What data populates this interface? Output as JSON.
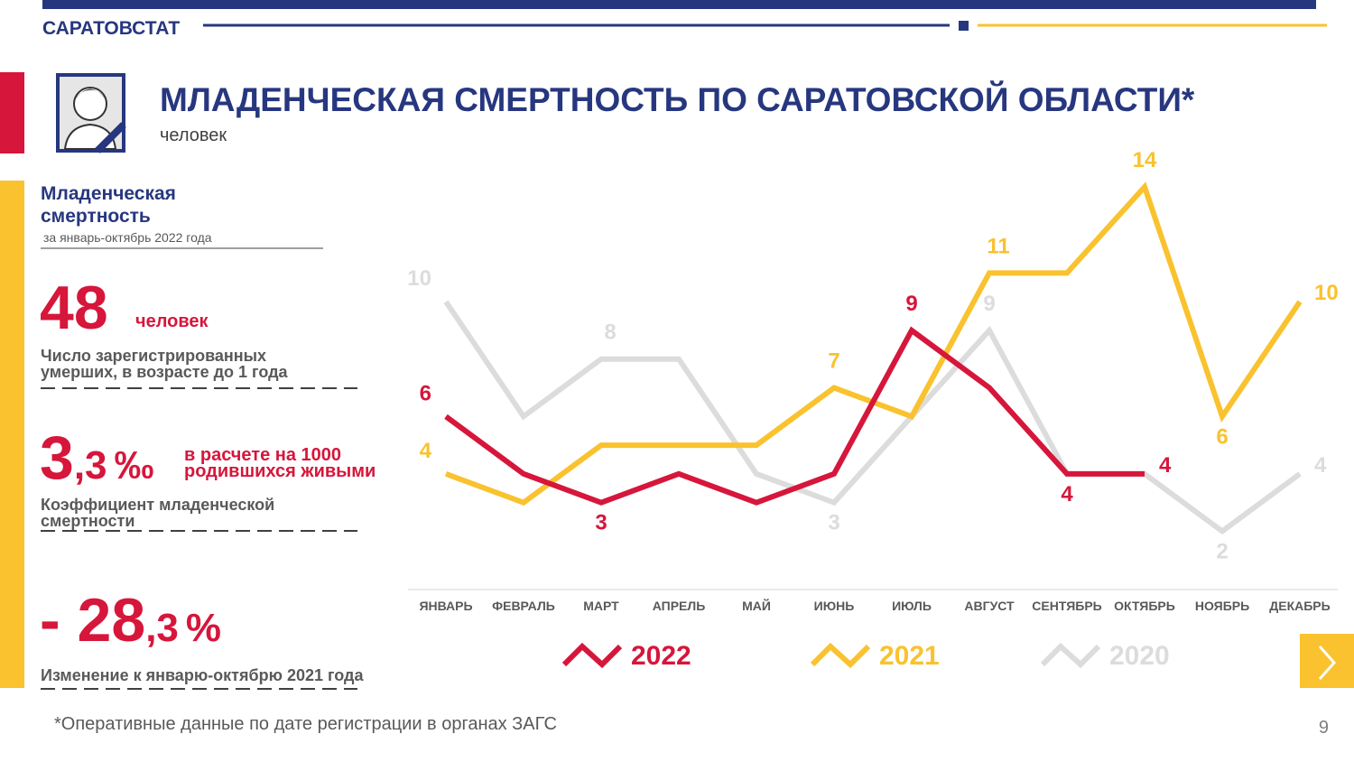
{
  "header": {
    "org": "САРАТОВСТАТ",
    "page": "9"
  },
  "sidebar": {
    "heading": [
      "Младенческая",
      "смертность"
    ],
    "period": "за январь-октябрь 2022 года",
    "stat1": {
      "value": "48",
      "unit": "человек",
      "desc": [
        "Число зарегистрированных",
        "умерших, в возрасте до 1 года"
      ]
    },
    "stat2": {
      "value_int": "3",
      "value_frac": ",3",
      "unit": "‰",
      "note": [
        "в расчете на 1000",
        "родившихся живыми"
      ],
      "desc": [
        "Коэффициент младенческой",
        "смертности"
      ]
    },
    "stat3": {
      "value_int": "- 28",
      "value_frac": ",3",
      "unit": "%",
      "desc": "Изменение к январю-октябрю 2021 года"
    }
  },
  "footnote": "*Оперативные данные по дате регистрации в органах ЗАГС",
  "chart_data": {
    "type": "line",
    "title": "МЛАДЕНЧЕСКАЯ СМЕРТНОСТЬ ПО САРАТОВСКОЙ ОБЛАСТИ*",
    "subtitle": "человек",
    "categories": [
      "ЯНВАРЬ",
      "ФЕВРАЛЬ",
      "МАРТ",
      "АПРЕЛЬ",
      "МАЙ",
      "ИЮНЬ",
      "ИЮЛЬ",
      "АВГУСТ",
      "СЕНТЯБРЬ",
      "ОКТЯБРЬ",
      "НОЯБРЬ",
      "ДЕКАБРЬ"
    ],
    "ylim": [
      0,
      14
    ],
    "series": [
      {
        "name": "2020",
        "color": "#dcdcdc",
        "values": [
          10,
          6,
          8,
          8,
          4,
          3,
          6,
          9,
          4,
          4,
          2,
          4
        ],
        "value_labels": [
          "10",
          null,
          "8",
          null,
          null,
          "3",
          null,
          "9",
          null,
          null,
          "2",
          "4"
        ]
      },
      {
        "name": "2021",
        "color": "#f9c22e",
        "values": [
          4,
          3,
          5,
          5,
          5,
          7,
          6,
          11,
          11,
          14,
          6,
          10
        ],
        "value_labels": [
          "4",
          null,
          null,
          null,
          null,
          "7",
          null,
          "11",
          null,
          "14",
          "6",
          "10"
        ]
      },
      {
        "name": "2022",
        "color": "#d6163b",
        "values": [
          6,
          4,
          3,
          4,
          3,
          4,
          9,
          7,
          4,
          4,
          null,
          null
        ],
        "value_labels": [
          "6",
          null,
          "3",
          null,
          null,
          null,
          "9",
          null,
          "4",
          "4",
          null,
          null
        ]
      }
    ]
  }
}
